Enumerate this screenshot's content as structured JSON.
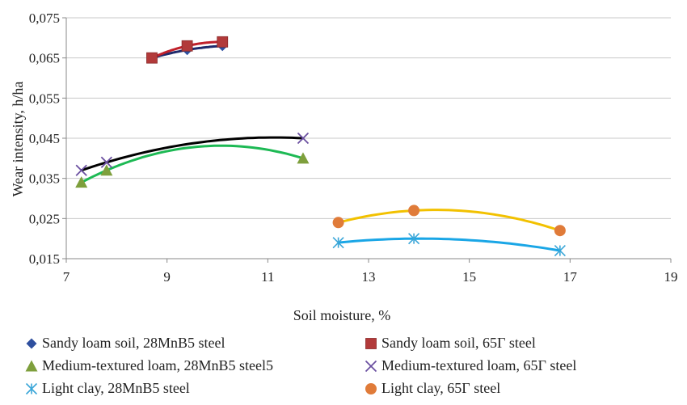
{
  "chart_data": {
    "type": "scatter",
    "xlabel": "Soil moisture, %",
    "ylabel": "Wear intensity, h/ha",
    "xlim": [
      7,
      19
    ],
    "ylim": [
      0.015,
      0.075
    ],
    "x_ticks": [
      "7",
      "9",
      "11",
      "13",
      "15",
      "17",
      "19"
    ],
    "y_ticks": [
      "0,015",
      "0,025",
      "0,035",
      "0,045",
      "0,055",
      "0,065",
      "0,075"
    ],
    "grid": "horizontal",
    "legend_position": "bottom",
    "series": [
      {
        "name": "Sandy loam soil, 28MnB5 steel",
        "marker": "diamond",
        "color": "#2E4F9E",
        "trend_color": "#1F2A6B",
        "x": [
          8.7,
          9.4,
          10.1
        ],
        "y": [
          0.065,
          0.067,
          0.068
        ]
      },
      {
        "name": "Sandy loam soil, 65Γ steel",
        "marker": "square",
        "color": "#B23A3A",
        "trend_color": "#C0202A",
        "x": [
          8.7,
          9.4,
          10.1
        ],
        "y": [
          0.065,
          0.068,
          0.069
        ]
      },
      {
        "name": "Medium-textured loam, 28MnB5 steel5",
        "marker": "triangle",
        "color": "#7E9F3C",
        "trend_color": "#1DB954",
        "x": [
          7.3,
          7.8,
          11.7
        ],
        "y": [
          0.034,
          0.037,
          0.04
        ]
      },
      {
        "name": "Medium-textured loam, 65Γ steel",
        "marker": "x",
        "color": "#6A4FA0",
        "trend_color": "#000000",
        "x": [
          7.3,
          7.8,
          11.7
        ],
        "y": [
          0.037,
          0.039,
          0.045
        ]
      },
      {
        "name": "Light clay, 28MnB5 steel",
        "marker": "asterisk",
        "color": "#3AA6D8",
        "trend_color": "#1AA6E6",
        "x": [
          12.4,
          13.9,
          16.8
        ],
        "y": [
          0.019,
          0.02,
          0.017
        ]
      },
      {
        "name": "Light clay, 65Γ steel",
        "marker": "circle",
        "color": "#E07B39",
        "trend_color": "#F2C100",
        "x": [
          12.4,
          13.9,
          16.8
        ],
        "y": [
          0.024,
          0.027,
          0.022
        ]
      }
    ]
  }
}
